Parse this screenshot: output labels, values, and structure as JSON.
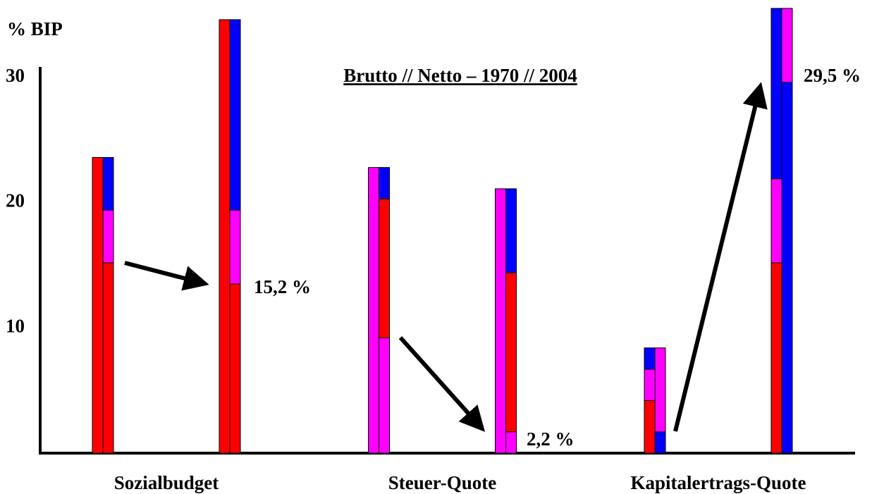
{
  "chart_data": {
    "type": "bar",
    "title": "Brutto // Netto – 1970 // 2004",
    "ylabel": "% BIP",
    "categories": [
      "Sozialbudget",
      "Steuer-Quote",
      "Kapitalertrags-Quote"
    ],
    "ylim": [
      0,
      36
    ],
    "yticks": [
      10,
      20,
      30
    ],
    "annotations": [
      "15,2 %",
      "2,2 %",
      "29,5 %"
    ],
    "bars": [
      [
        [
          [
            {
              "value": 23.6,
              "color": "#ff0000"
            }
          ],
          [
            {
              "value": 15.2,
              "color": "#ff0000"
            },
            {
              "value": 4.2,
              "color": "#ff00ff"
            },
            {
              "value": 4.2,
              "color": "#0000ff"
            }
          ]
        ],
        [
          [
            {
              "value": 34.6,
              "color": "#ff0000"
            }
          ],
          [
            {
              "value": 13.5,
              "color": "#ff0000"
            },
            {
              "value": 5.9,
              "color": "#ff00ff"
            },
            {
              "value": 15.2,
              "color": "#0000ff"
            }
          ]
        ]
      ],
      [
        [
          [
            {
              "value": 22.8,
              "color": "#ff00ff"
            }
          ],
          [
            {
              "value": 9.2,
              "color": "#ff00ff"
            },
            {
              "value": 11.1,
              "color": "#ff0000"
            },
            {
              "value": 2.5,
              "color": "#0000ff"
            }
          ]
        ],
        [
          [
            {
              "value": 21.1,
              "color": "#ff00ff"
            }
          ],
          [
            {
              "value": 1.7,
              "color": "#ff00ff"
            },
            {
              "value": 12.7,
              "color": "#ff0000"
            },
            {
              "value": 6.7,
              "color": "#0000ff"
            }
          ]
        ]
      ],
      [
        [
          [
            {
              "value": 4.2,
              "color": "#ff0000"
            },
            {
              "value": 2.5,
              "color": "#ff00ff"
            },
            {
              "value": 1.7,
              "color": "#0000ff"
            }
          ],
          [
            {
              "value": 1.7,
              "color": "#0000ff"
            },
            {
              "value": 6.7,
              "color": "#ff00ff"
            }
          ]
        ],
        [
          [
            {
              "value": 15.2,
              "color": "#ff0000"
            },
            {
              "value": 6.7,
              "color": "#ff00ff"
            },
            {
              "value": 13.6,
              "color": "#0000ff"
            }
          ],
          [
            {
              "value": 29.6,
              "color": "#0000ff"
            },
            {
              "value": 5.9,
              "color": "#ff00ff"
            }
          ]
        ]
      ]
    ]
  }
}
